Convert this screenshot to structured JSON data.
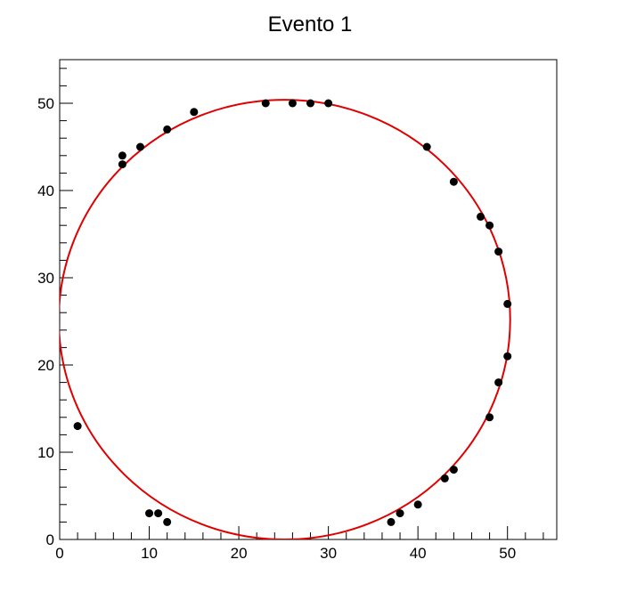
{
  "chart_data": {
    "type": "scatter",
    "title": "Evento 1",
    "xlabel": "",
    "ylabel": "",
    "xlim": [
      0,
      55.5
    ],
    "ylim": [
      0,
      55
    ],
    "x_ticks": [
      0,
      10,
      20,
      30,
      40,
      50
    ],
    "y_ticks": [
      0,
      10,
      20,
      30,
      40,
      50
    ],
    "grid": false,
    "points": [
      {
        "x": 2,
        "y": 13
      },
      {
        "x": 7,
        "y": 44
      },
      {
        "x": 7,
        "y": 43
      },
      {
        "x": 9,
        "y": 45
      },
      {
        "x": 10,
        "y": 3
      },
      {
        "x": 11,
        "y": 3
      },
      {
        "x": 12,
        "y": 2
      },
      {
        "x": 12,
        "y": 47
      },
      {
        "x": 15,
        "y": 49
      },
      {
        "x": 23,
        "y": 50
      },
      {
        "x": 26,
        "y": 50
      },
      {
        "x": 28,
        "y": 50
      },
      {
        "x": 30,
        "y": 50
      },
      {
        "x": 37,
        "y": 2
      },
      {
        "x": 38,
        "y": 3
      },
      {
        "x": 40,
        "y": 4
      },
      {
        "x": 41,
        "y": 45
      },
      {
        "x": 43,
        "y": 7
      },
      {
        "x": 44,
        "y": 8
      },
      {
        "x": 44,
        "y": 41
      },
      {
        "x": 47,
        "y": 37
      },
      {
        "x": 48,
        "y": 36
      },
      {
        "x": 48,
        "y": 14
      },
      {
        "x": 49,
        "y": 33
      },
      {
        "x": 49,
        "y": 18
      },
      {
        "x": 50,
        "y": 27
      },
      {
        "x": 50,
        "y": 21
      }
    ],
    "fit_circle": {
      "cx": 25.1,
      "cy": 25.2,
      "r": 25.2
    },
    "colors": {
      "points": "#000000",
      "fit": "#e00000",
      "frame": "#000000"
    }
  }
}
